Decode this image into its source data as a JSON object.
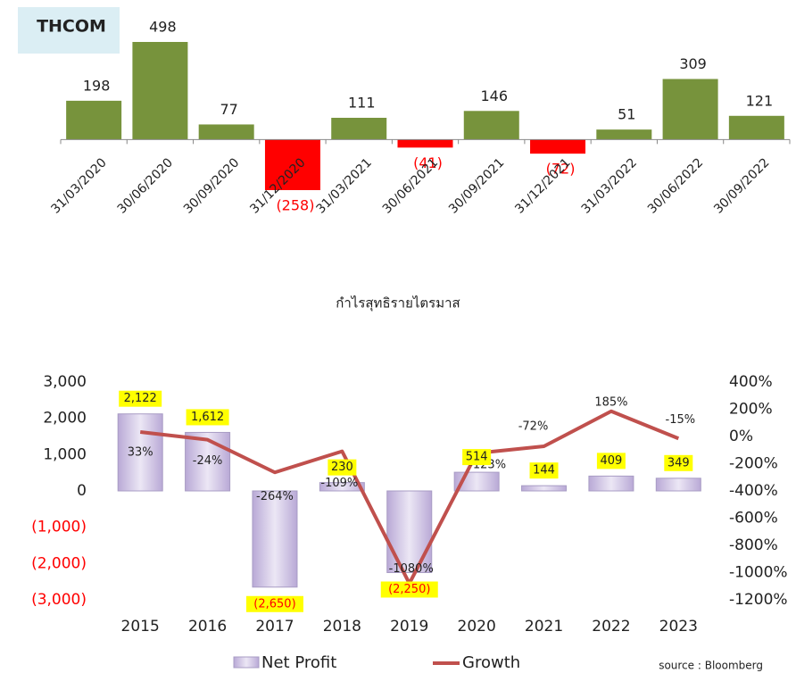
{
  "chart_data": [
    {
      "type": "bar",
      "title": "THCOM",
      "x_label": "กำไรสุทธิรายไตรมาส",
      "categories": [
        "31/03/2020",
        "30/06/2020",
        "30/09/2020",
        "31/12/2020",
        "31/03/2021",
        "30/06/2021",
        "30/09/2021",
        "31/12/2021",
        "31/03/2022",
        "30/06/2022",
        "30/09/2022"
      ],
      "values": [
        198,
        498,
        77,
        -258,
        111,
        -41,
        146,
        -72,
        51,
        309,
        121
      ],
      "value_labels": [
        "198",
        "498",
        "77",
        "(258)",
        "111",
        "(41)",
        "146",
        "(72)",
        "51",
        "309",
        "121"
      ],
      "color": "#77933c",
      "negative_color": "#ff0000"
    },
    {
      "type": "bar_line",
      "categories": [
        "2015",
        "2016",
        "2017",
        "2018",
        "2019",
        "2020",
        "2021",
        "2022",
        "2023"
      ],
      "series": [
        {
          "name": "Net Profit",
          "color": "#d9d0ea",
          "values": [
            2122,
            1612,
            -2650,
            230,
            -2250,
            514,
            144,
            409,
            349
          ],
          "value_labels": [
            "2,122",
            "1,612",
            "(2,650)",
            "230",
            "(2,250)",
            "514",
            "144",
            "409",
            "349"
          ]
        },
        {
          "name": "Growth",
          "color": "#c0504d",
          "axis": "y2",
          "values": [
            33,
            -24,
            -264,
            -109,
            -1080,
            -123,
            -72,
            185,
            -15
          ],
          "value_labels": [
            "33%",
            "-24%",
            "-264%",
            "-109%",
            "-1080%",
            "-123%",
            "-72%",
            "185%",
            "-15%"
          ]
        }
      ],
      "ylim": [
        -3000,
        3000
      ],
      "yticks": [
        {
          "value": 3000,
          "label": "3,000"
        },
        {
          "value": 2000,
          "label": "2,000"
        },
        {
          "value": 1000,
          "label": "1,000"
        },
        0,
        {
          "value": -1000,
          "label": "(1,000)"
        },
        {
          "value": -2000,
          "label": "(2,000)"
        },
        {
          "value": -3000,
          "label": "(3,000)"
        }
      ],
      "y2lim": [
        -1200,
        400
      ],
      "y2ticks": [
        {
          "value": 400,
          "label": "400%"
        },
        {
          "value": 200,
          "label": "200%"
        },
        {
          "value": 0,
          "label": "0%"
        },
        {
          "value": -200,
          "label": "-200%"
        },
        {
          "value": -400,
          "label": "-400%"
        },
        {
          "value": -600,
          "label": "-600%"
        },
        {
          "value": -800,
          "label": "-800%"
        },
        {
          "value": -1000,
          "label": "-1000%"
        },
        {
          "value": -1200,
          "label": "-1200%"
        }
      ],
      "negative_label_color": "#ff0000",
      "label_highlight": "#ffff00",
      "source": "source : Bloomberg"
    }
  ]
}
